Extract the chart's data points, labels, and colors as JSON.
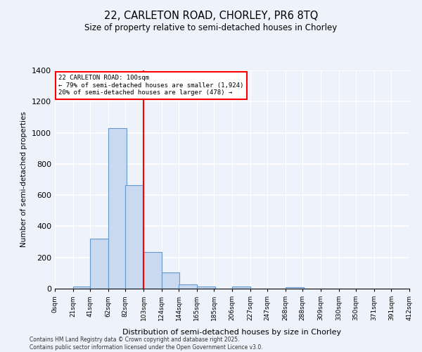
{
  "title1": "22, CARLETON ROAD, CHORLEY, PR6 8TQ",
  "title2": "Size of property relative to semi-detached houses in Chorley",
  "xlabel": "Distribution of semi-detached houses by size in Chorley",
  "ylabel": "Number of semi-detached properties",
  "bin_labels": [
    "0sqm",
    "21sqm",
    "41sqm",
    "62sqm",
    "82sqm",
    "103sqm",
    "124sqm",
    "144sqm",
    "165sqm",
    "185sqm",
    "206sqm",
    "227sqm",
    "247sqm",
    "268sqm",
    "288sqm",
    "309sqm",
    "330sqm",
    "350sqm",
    "371sqm",
    "391sqm",
    "412sqm"
  ],
  "bin_edges": [
    0,
    21,
    41,
    62,
    82,
    103,
    124,
    144,
    165,
    185,
    206,
    227,
    247,
    268,
    288,
    309,
    330,
    350,
    371,
    391,
    412
  ],
  "values": [
    0,
    15,
    320,
    1030,
    665,
    235,
    105,
    25,
    15,
    0,
    15,
    0,
    0,
    10,
    0,
    0,
    0,
    0,
    0,
    0,
    0
  ],
  "bar_color": "#c9d9f0",
  "bar_edge_color": "#6699cc",
  "vline_x": 103,
  "vline_color": "red",
  "annotation_title": "22 CARLETON ROAD: 100sqm",
  "annotation_line1": "← 79% of semi-detached houses are smaller (1,924)",
  "annotation_line2": "20% of semi-detached houses are larger (478) →",
  "ylim": [
    0,
    1400
  ],
  "yticks": [
    0,
    200,
    400,
    600,
    800,
    1000,
    1200,
    1400
  ],
  "footer1": "Contains HM Land Registry data © Crown copyright and database right 2025.",
  "footer2": "Contains public sector information licensed under the Open Government Licence v3.0.",
  "bg_color": "#eef2fa",
  "grid_color": "#ffffff"
}
